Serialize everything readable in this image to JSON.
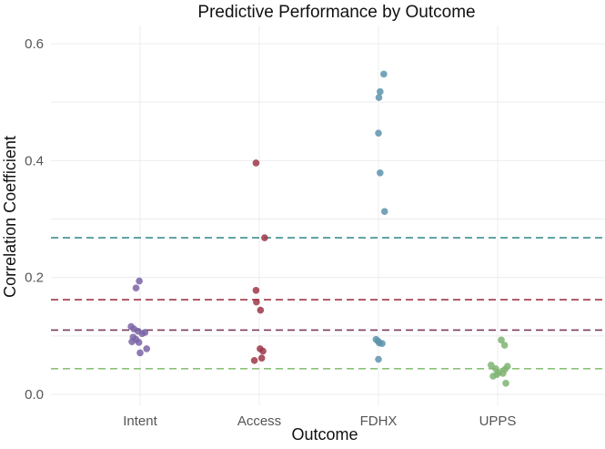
{
  "chart_data": {
    "type": "scatter",
    "title": "Predictive Performance by Outcome",
    "xlabel": "Outcome",
    "ylabel": "Correlation Coefficient",
    "categories": [
      "Intent",
      "Access",
      "FDHX",
      "UPPS"
    ],
    "ylim": [
      0,
      0.62
    ],
    "yticks": [
      "0.0",
      "0.2",
      "0.4",
      "0.6"
    ],
    "grid": true,
    "legend": "none",
    "series": [
      {
        "category": "Intent",
        "color": "#7a64a6",
        "points": [
          {
            "jitter": -0.22,
            "y": 0.116
          },
          {
            "jitter": -0.15,
            "y": 0.112
          },
          {
            "jitter": -0.05,
            "y": 0.108
          },
          {
            "jitter": 0.05,
            "y": 0.104
          },
          {
            "jitter": 0.12,
            "y": 0.106
          },
          {
            "jitter": -0.17,
            "y": 0.098
          },
          {
            "jitter": -0.1,
            "y": 0.094
          },
          {
            "jitter": -0.2,
            "y": 0.09
          },
          {
            "jitter": -0.03,
            "y": 0.089
          },
          {
            "jitter": 0.16,
            "y": 0.078
          },
          {
            "jitter": 0.0,
            "y": 0.071
          },
          {
            "jitter": -0.1,
            "y": 0.182
          },
          {
            "jitter": -0.02,
            "y": 0.194
          }
        ]
      },
      {
        "category": "Access",
        "color": "#9e3648",
        "points": [
          {
            "jitter": -0.08,
            "y": 0.396
          },
          {
            "jitter": 0.13,
            "y": 0.268
          },
          {
            "jitter": -0.08,
            "y": 0.178
          },
          {
            "jitter": -0.07,
            "y": 0.158
          },
          {
            "jitter": 0.03,
            "y": 0.144
          },
          {
            "jitter": 0.02,
            "y": 0.078
          },
          {
            "jitter": 0.09,
            "y": 0.074
          },
          {
            "jitter": 0.06,
            "y": 0.062
          },
          {
            "jitter": -0.12,
            "y": 0.058
          }
        ]
      },
      {
        "category": "FDHX",
        "color": "#5d94ad",
        "points": [
          {
            "jitter": 0.13,
            "y": 0.548
          },
          {
            "jitter": 0.04,
            "y": 0.518
          },
          {
            "jitter": 0.01,
            "y": 0.508
          },
          {
            "jitter": 0.0,
            "y": 0.447
          },
          {
            "jitter": 0.04,
            "y": 0.379
          },
          {
            "jitter": 0.15,
            "y": 0.313
          },
          {
            "jitter": -0.06,
            "y": 0.094
          },
          {
            "jitter": -0.01,
            "y": 0.091
          },
          {
            "jitter": 0.02,
            "y": 0.088
          },
          {
            "jitter": 0.09,
            "y": 0.087
          },
          {
            "jitter": 0.0,
            "y": 0.06
          }
        ]
      },
      {
        "category": "UPPS",
        "color": "#7fb472",
        "points": [
          {
            "jitter": 0.09,
            "y": 0.093
          },
          {
            "jitter": 0.17,
            "y": 0.084
          },
          {
            "jitter": -0.16,
            "y": 0.05
          },
          {
            "jitter": 0.24,
            "y": 0.048
          },
          {
            "jitter": -0.05,
            "y": 0.044
          },
          {
            "jitter": 0.18,
            "y": 0.043
          },
          {
            "jitter": 0.03,
            "y": 0.038
          },
          {
            "jitter": 0.13,
            "y": 0.036
          },
          {
            "jitter": -0.02,
            "y": 0.034
          },
          {
            "jitter": -0.11,
            "y": 0.031
          },
          {
            "jitter": 0.2,
            "y": 0.019
          }
        ]
      }
    ],
    "reference_lines": [
      {
        "y": 0.268,
        "color": "#3e8e8f"
      },
      {
        "y": 0.162,
        "color": "#9e3648"
      },
      {
        "y": 0.11,
        "color": "#7d3a5e"
      },
      {
        "y": 0.044,
        "color": "#8cc27a"
      }
    ]
  }
}
